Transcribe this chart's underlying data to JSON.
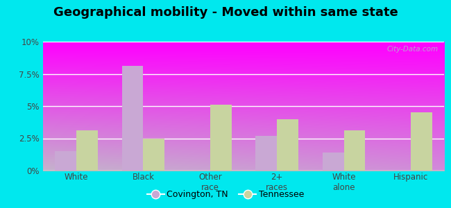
{
  "title": "Geographical mobility - Moved within same state",
  "categories": [
    "White",
    "Black",
    "Other\nrace",
    "2+\nraces",
    "White\nalone",
    "Hispanic"
  ],
  "covington_values": [
    1.5,
    8.1,
    0.0,
    2.7,
    1.4,
    0.0
  ],
  "tennessee_values": [
    3.1,
    2.5,
    5.1,
    4.0,
    3.1,
    4.5
  ],
  "covington_color": "#c9a8d4",
  "tennessee_color": "#c8d4a0",
  "ylim": [
    0,
    10
  ],
  "yticks": [
    0,
    2.5,
    5.0,
    7.5,
    10.0
  ],
  "ytick_labels": [
    "0%",
    "2.5%",
    "5%",
    "7.5%",
    "10%"
  ],
  "outer_background": "#00e8ee",
  "title_fontsize": 13,
  "legend_labels": [
    "Covington, TN",
    "Tennessee"
  ],
  "bar_width": 0.32,
  "watermark": "City-Data.com"
}
